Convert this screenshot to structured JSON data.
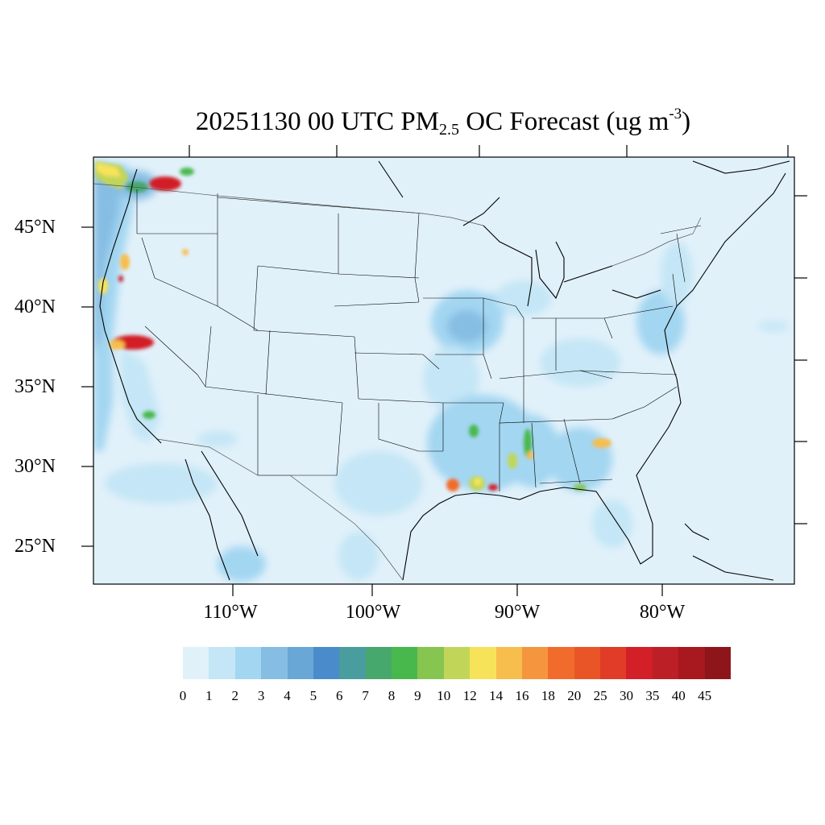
{
  "title": {
    "prefix": "20251130 00 UTC PM",
    "subscript": "2.5",
    "middle": " OC Forecast (ug m",
    "superscript": "-3",
    "suffix": ")"
  },
  "lat_labels": [
    "45°N",
    "40°N",
    "35°N",
    "30°N",
    "25°N"
  ],
  "lon_labels": [
    "110°W",
    "100°W",
    "90°W",
    "80°W"
  ],
  "colorbar": {
    "labels": [
      "0",
      "1",
      "2",
      "3",
      "4",
      "5",
      "6",
      "7",
      "8",
      "9",
      "10",
      "12",
      "14",
      "16",
      "18",
      "20",
      "25",
      "30",
      "35",
      "40",
      "45"
    ],
    "colors": [
      "#e1f1fa",
      "#c4e6f6",
      "#a3d6f1",
      "#86bde3",
      "#68a7d6",
      "#4a8ccb",
      "#4a9d9e",
      "#46a86d",
      "#48b84d",
      "#86c550",
      "#c1d659",
      "#f7e35a",
      "#f7bd4d",
      "#f5963f",
      "#f16c2c",
      "#ea5528",
      "#e03c28",
      "#d21f28",
      "#bd1f26",
      "#a8181f",
      "#8e161b"
    ]
  }
}
